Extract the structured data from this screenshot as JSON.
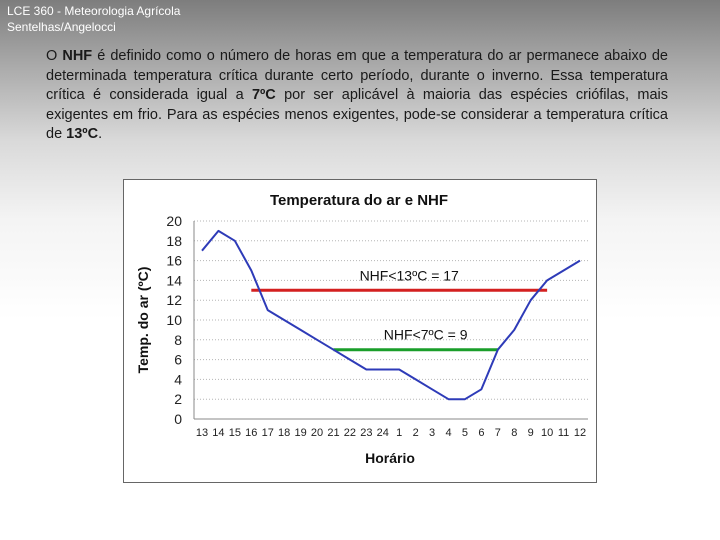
{
  "header": {
    "line1": "LCE 360 - Meteorologia Agrícola",
    "line2": "Sentelhas/Angelocci"
  },
  "intro": {
    "t1": "O ",
    "b1": "NHF",
    "t2": " é definido como o número de horas em que a temperatura do ar permanece abaixo de determinada temperatura crítica durante certo período, durante o inverno. Essa temperatura crítica é considerada igual a ",
    "b2": "7ºC",
    "t3": " por ser aplicável à maioria das espécies crióﬁlas, mais exigentes em frio. Para as espécies menos exigentes, pode-se considerar a temperatura crítica de ",
    "b3": "13ºC",
    "t4": "."
  },
  "chart_data": {
    "type": "line",
    "title": "Temperatura do ar e NHF",
    "xlabel": "Horário",
    "ylabel": "Temp. do ar (ºC)",
    "ylim": [
      0,
      20
    ],
    "yticks": [
      0,
      2,
      4,
      6,
      8,
      10,
      12,
      14,
      16,
      18,
      20
    ],
    "categories": [
      "13",
      "14",
      "15",
      "16",
      "17",
      "18",
      "19",
      "20",
      "21",
      "22",
      "23",
      "24",
      "1",
      "2",
      "3",
      "4",
      "5",
      "6",
      "7",
      "8",
      "9",
      "10",
      "11",
      "12"
    ],
    "series": [
      {
        "values": [
          17,
          19,
          18,
          15,
          11,
          10,
          9,
          8,
          7,
          6,
          5,
          5,
          5,
          4,
          3,
          2,
          2,
          3,
          7,
          9,
          12,
          14,
          15,
          16
        ],
        "color": "#2e3bb8"
      }
    ],
    "annotations": [
      {
        "label": "NHF<13ºC = 17",
        "y": 13,
        "x_from": "16",
        "x_to": "10",
        "color": "#d42020"
      },
      {
        "label": "NHF<7ºC = 9",
        "y": 7,
        "x_from": "21",
        "x_to": "7",
        "color": "#1a9e2a"
      }
    ],
    "grid": true,
    "legend": "none"
  }
}
